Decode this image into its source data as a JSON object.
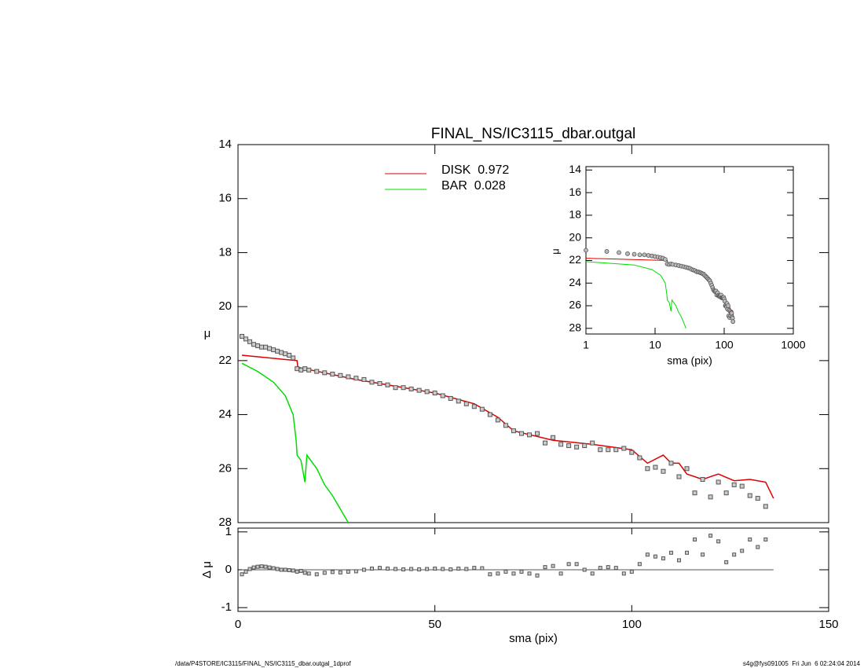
{
  "chart_data": [
    {
      "type": "line",
      "title": "FINAL_NS/IC3115_dbar.outgal",
      "ylabel": "μ",
      "xlabel": "sma (pix)",
      "xlim": [
        0,
        150
      ],
      "xticks": [
        0,
        50,
        100,
        150
      ],
      "ylim": [
        14,
        28
      ],
      "yticks": [
        14,
        16,
        18,
        20,
        22,
        24,
        26,
        28
      ],
      "y_reversed": true,
      "marker_color": "#555555",
      "x": [
        1,
        2,
        3,
        4,
        5,
        6,
        7,
        8,
        9,
        10,
        11,
        12,
        13,
        14,
        15,
        16,
        17,
        18,
        20,
        22,
        24,
        26,
        28,
        30,
        32,
        34,
        36,
        38,
        40,
        42,
        44,
        46,
        48,
        50,
        52,
        54,
        56,
        58,
        60,
        62,
        64,
        66,
        68,
        70,
        72,
        74,
        76,
        78,
        80,
        82,
        84,
        86,
        88,
        90,
        92,
        94,
        96,
        98,
        100,
        102,
        104,
        106,
        108,
        110,
        112,
        114,
        116,
        118,
        120,
        122,
        124,
        126,
        128,
        130,
        132,
        134
      ],
      "values": [
        21.1,
        21.2,
        21.3,
        21.4,
        21.45,
        21.5,
        21.5,
        21.55,
        21.6,
        21.65,
        21.7,
        21.75,
        21.8,
        21.9,
        22.3,
        22.35,
        22.3,
        22.35,
        22.4,
        22.45,
        22.5,
        22.55,
        22.6,
        22.65,
        22.7,
        22.8,
        22.85,
        22.9,
        23.0,
        23.0,
        23.05,
        23.1,
        23.15,
        23.2,
        23.3,
        23.4,
        23.5,
        23.6,
        23.7,
        23.8,
        24.0,
        24.2,
        24.4,
        24.6,
        24.7,
        24.75,
        24.7,
        25.05,
        24.85,
        25.1,
        25.15,
        25.2,
        25.15,
        25.05,
        25.3,
        25.3,
        25.3,
        25.25,
        25.4,
        25.6,
        26.0,
        25.95,
        26.1,
        25.8,
        26.3,
        26.0,
        26.9,
        26.4,
        27.05,
        26.5,
        26.9,
        26.6,
        26.65,
        27.0,
        27.1,
        27.4
      ],
      "series": [
        {
          "name": "DISK  0.972",
          "color": "#dd0000",
          "x": [
            1,
            15,
            15.2,
            30,
            50,
            60,
            66,
            70,
            80,
            90,
            100,
            104,
            108,
            110,
            112,
            114,
            118,
            122,
            126,
            130,
            134,
            136
          ],
          "values": [
            21.8,
            22.0,
            22.25,
            22.7,
            23.2,
            23.6,
            24.1,
            24.6,
            24.95,
            25.1,
            25.3,
            25.8,
            25.5,
            25.8,
            25.8,
            26.2,
            26.4,
            26.2,
            26.45,
            26.4,
            26.5,
            27.1
          ]
        },
        {
          "name": "BAR  0.028",
          "color": "#00dd00",
          "x": [
            1,
            5,
            9,
            12,
            14,
            14.8,
            15,
            16,
            17,
            17.5,
            18,
            20,
            22,
            24,
            26,
            28
          ],
          "values": [
            22.1,
            22.4,
            22.8,
            23.3,
            24.0,
            25.0,
            25.5,
            25.7,
            26.5,
            25.5,
            25.6,
            26.0,
            26.6,
            27.0,
            27.5,
            28.0
          ]
        }
      ]
    },
    {
      "type": "scatter",
      "ylabel": "Δ μ",
      "ylim": [
        -1.1,
        1.1
      ],
      "yticks": [
        -1,
        0,
        1
      ],
      "values": [
        -0.12,
        -0.05,
        0.02,
        0.06,
        0.08,
        0.09,
        0.08,
        0.06,
        0.04,
        0.02,
        0,
        0,
        -0.01,
        -0.02,
        -0.05,
        -0.03,
        -0.08,
        -0.1,
        -0.12,
        -0.08,
        -0.06,
        -0.07,
        -0.05,
        -0.04,
        0.0,
        0.03,
        0.05,
        0.03,
        0.02,
        0.01,
        0.02,
        0.01,
        0.02,
        0.03,
        0.02,
        0.01,
        0.03,
        0.02,
        0.05,
        0.04,
        -0.12,
        -0.1,
        -0.05,
        -0.1,
        -0.05,
        -0.1,
        -0.15,
        0.07,
        0.1,
        -0.1,
        0.15,
        0.15,
        0.0,
        -0.1,
        0.05,
        0.07,
        0.05,
        -0.1,
        -0.05,
        0.15,
        0.4,
        0.35,
        0.3,
        0.45,
        0.25,
        0.45,
        0.8,
        0.4,
        0.9,
        0.75,
        0.2,
        0.4,
        0.5,
        0.8,
        0.6,
        0.8
      ]
    },
    {
      "type": "inset",
      "ylabel": "μ",
      "xlabel": "sma (pix)",
      "xscale": "log",
      "xlim": [
        1,
        1000
      ],
      "xticks": [
        1,
        10,
        100,
        1000
      ],
      "ylim": [
        13.7,
        28.5
      ],
      "yticks": [
        14,
        16,
        18,
        20,
        22,
        24,
        26,
        28
      ],
      "y_reversed": true
    }
  ],
  "footer": {
    "left": "/data/P4STORE/IC3115/FINAL_NS/IC3115_dbar.outgal_1dprof",
    "right": "s4g@fys091005  Fri Jun  6 02:24:04 2014"
  }
}
